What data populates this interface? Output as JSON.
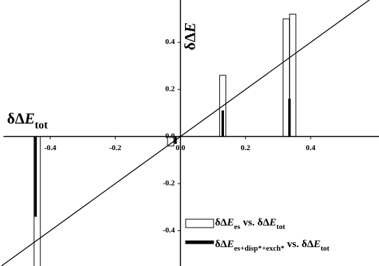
{
  "chart_data": {
    "type": "bar",
    "x_title": [
      {
        "t": "δΔ"
      },
      {
        "t": "E",
        "i": true
      },
      {
        "t": "tot",
        "sub": true
      }
    ],
    "y_title": [
      {
        "t": "δΔ"
      },
      {
        "t": "E",
        "i": true
      }
    ],
    "xlim": [
      -0.55,
      0.61
    ],
    "ylim": [
      -0.55,
      0.58
    ],
    "xticks": [
      -0.4,
      -0.2,
      {
        "value": 0,
        "label": "0.0"
      },
      0.2,
      0.4
    ],
    "yticks": [
      -0.4,
      -0.2,
      {
        "value": 0,
        "label": "0.0"
      },
      0.2,
      0.4
    ],
    "diagonal": {
      "x": [
        -0.55,
        0.6
      ],
      "values": [
        -0.55,
        0.6
      ]
    },
    "legend": "lower right",
    "series": [
      {
        "name": [
          {
            "t": "δΔ"
          },
          {
            "t": "E",
            "i": true
          },
          {
            "t": "es",
            "sub": true
          },
          {
            "t": " vs. δΔ"
          },
          {
            "t": "E",
            "i": true
          },
          {
            "t": "tot",
            "sub": true
          }
        ],
        "style": "open",
        "color": "#000",
        "x": [
          -0.44,
          -0.03,
          0.13,
          0.325,
          0.345
        ],
        "values": [
          -0.6,
          -0.04,
          0.26,
          0.5,
          0.52
        ]
      },
      {
        "name": [
          {
            "t": "δΔ"
          },
          {
            "t": "E",
            "i": true
          },
          {
            "t": "es+disp*+exch*",
            "sub": true
          },
          {
            "t": " vs. δΔ"
          },
          {
            "t": "E",
            "i": true
          },
          {
            "t": "tot",
            "sub": true
          }
        ],
        "style": "filled",
        "color": "#000",
        "x": [
          -0.445,
          -0.015,
          0.13,
          0.335
        ],
        "values": [
          -0.34,
          -0.03,
          0.11,
          0.16
        ]
      }
    ]
  }
}
